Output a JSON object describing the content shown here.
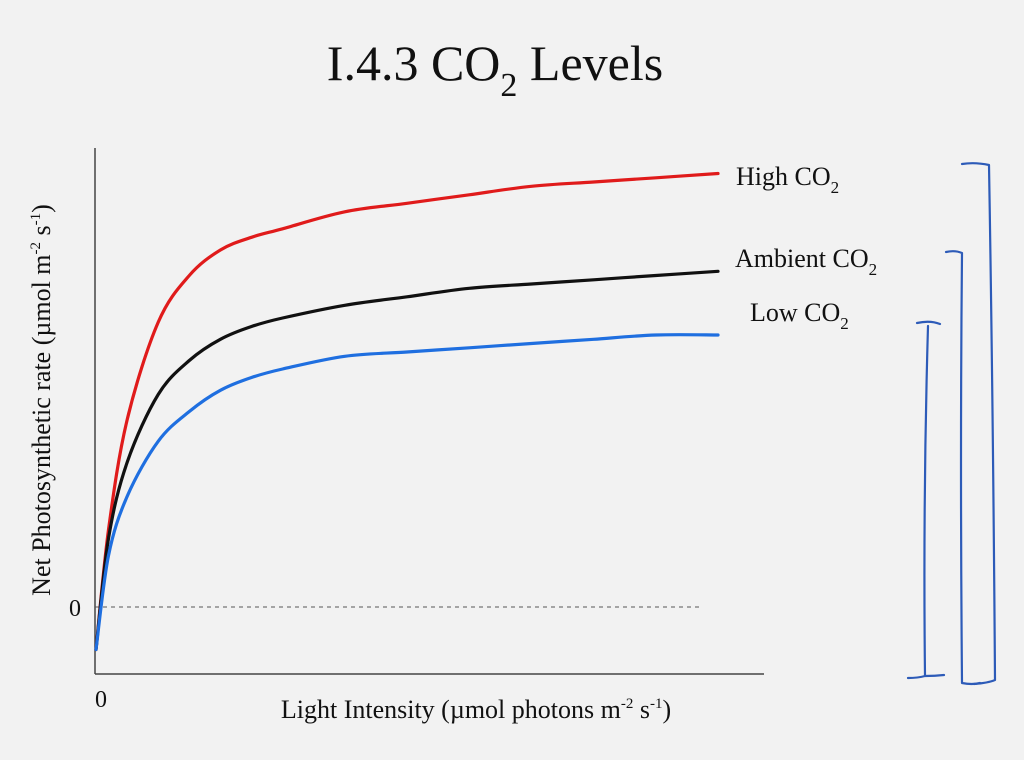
{
  "chart_data": {
    "type": "line",
    "title": {
      "main": "I.4.3 CO",
      "sub": "2",
      "tail": " Levels"
    },
    "xlabel": {
      "pre": "Light Intensity (µmol photons m",
      "sup1": "-2",
      "mid": " s",
      "sup2": "-1",
      "post": ")"
    },
    "ylabel": {
      "pre": "Net Photosynthetic rate (µmol m",
      "sup1": "-2",
      "mid": " s",
      "sup2": "-1",
      "post": ")"
    },
    "x_tick_labels": [
      "0"
    ],
    "y_tick_labels": [
      "0"
    ],
    "xlim": [
      0,
      1
    ],
    "ylim": [
      -0.11,
      1.12
    ],
    "grid": false,
    "reference_line": {
      "y": 0,
      "style": "dashed"
    },
    "series": [
      {
        "name_main": "High CO",
        "name_sub": "2",
        "color": "#e01b1b",
        "x": [
          0,
          0.02,
          0.05,
          0.1,
          0.15,
          0.2,
          0.25,
          0.3,
          0.4,
          0.5,
          0.6,
          0.7,
          0.8,
          0.9,
          1.0
        ],
        "y": [
          -0.1,
          0.18,
          0.44,
          0.67,
          0.78,
          0.84,
          0.87,
          0.89,
          0.93,
          0.95,
          0.97,
          0.99,
          1.0,
          1.01,
          1.02
        ]
      },
      {
        "name_main": "Ambient CO",
        "name_sub": "2",
        "color": "#111111",
        "x": [
          0,
          0.02,
          0.05,
          0.1,
          0.15,
          0.2,
          0.25,
          0.3,
          0.4,
          0.5,
          0.6,
          0.7,
          0.8,
          0.9,
          1.0
        ],
        "y": [
          -0.1,
          0.16,
          0.34,
          0.5,
          0.58,
          0.63,
          0.66,
          0.68,
          0.71,
          0.73,
          0.75,
          0.76,
          0.77,
          0.78,
          0.79
        ]
      },
      {
        "name_main": "Low CO",
        "name_sub": "2",
        "color": "#1f6fe0",
        "x": [
          0,
          0.02,
          0.05,
          0.1,
          0.15,
          0.2,
          0.25,
          0.3,
          0.4,
          0.5,
          0.6,
          0.7,
          0.8,
          0.9,
          1.0
        ],
        "y": [
          -0.1,
          0.12,
          0.26,
          0.39,
          0.46,
          0.51,
          0.54,
          0.56,
          0.59,
          0.6,
          0.61,
          0.62,
          0.63,
          0.64,
          0.64
        ]
      }
    ],
    "annotation": {
      "type": "handwritten-brackets",
      "color": "#2d5bb8",
      "count": 3
    }
  }
}
